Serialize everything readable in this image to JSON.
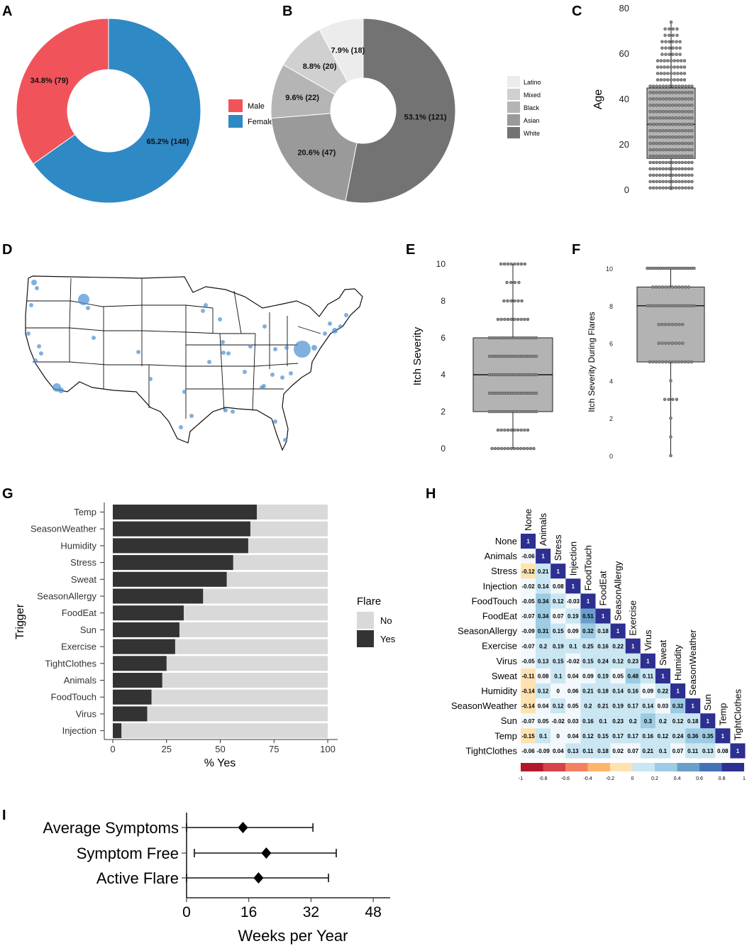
{
  "panel_labels": [
    "A",
    "B",
    "C",
    "D",
    "E",
    "F",
    "G",
    "H",
    "I"
  ],
  "chart_data": [
    {
      "id": "A",
      "type": "pie",
      "donut": true,
      "slices": [
        {
          "label": "Female",
          "value": 65.2,
          "count": 148,
          "text": "65.2% (148)",
          "color": "#2f89c5"
        },
        {
          "label": "Male",
          "value": 34.8,
          "count": 79,
          "text": "34.8% (79)",
          "color": "#f0545a"
        }
      ],
      "legend": [
        {
          "label": "Male",
          "color": "#f0545a"
        },
        {
          "label": "Female",
          "color": "#2f89c5"
        }
      ]
    },
    {
      "id": "B",
      "type": "pie",
      "donut": true,
      "slices": [
        {
          "label": "White",
          "value": 53.1,
          "count": 121,
          "text": "53.1% (121)",
          "color": "#737373"
        },
        {
          "label": "Asian",
          "value": 20.6,
          "count": 47,
          "text": "20.6% (47)",
          "color": "#9a9a9a"
        },
        {
          "label": "Black",
          "value": 9.6,
          "count": 22,
          "text": "9.6% (22)",
          "color": "#b5b5b5"
        },
        {
          "label": "Mixed",
          "value": 8.8,
          "count": 20,
          "text": "8.8% (20)",
          "color": "#d0d0d0"
        },
        {
          "label": "Latino",
          "value": 7.9,
          "count": 18,
          "text": "7.9% (18)",
          "color": "#ececec"
        }
      ],
      "legend": [
        {
          "label": "Latino",
          "color": "#ececec"
        },
        {
          "label": "Mixed",
          "color": "#d0d0d0"
        },
        {
          "label": "Black",
          "color": "#b5b5b5"
        },
        {
          "label": "Asian",
          "color": "#9a9a9a"
        },
        {
          "label": "White",
          "color": "#737373"
        }
      ]
    },
    {
      "id": "C",
      "type": "box",
      "ylabel": "Age",
      "ylim": [
        0,
        80
      ],
      "yticks": [
        "0",
        "20",
        "40",
        "60",
        "80"
      ],
      "box": {
        "min": 0,
        "q1": 14,
        "median": 29,
        "q3": 45,
        "max": 74
      }
    },
    {
      "id": "D",
      "type": "map",
      "region": "Contiguous United States",
      "point_color": "#4a8fcf"
    },
    {
      "id": "E",
      "type": "box",
      "ylabel": "Itch Severity",
      "ylim": [
        0,
        10
      ],
      "yticks": [
        "0",
        "2",
        "4",
        "6",
        "8",
        "10"
      ],
      "box": {
        "min": 0,
        "q1": 2,
        "median": 4,
        "q3": 6,
        "max": 10
      }
    },
    {
      "id": "F",
      "type": "box",
      "ylabel": "Itch Severity During Flares",
      "ylim": [
        0,
        10
      ],
      "yticks": [
        "0",
        "2",
        "4",
        "6",
        "8",
        "10"
      ],
      "box": {
        "min": 0,
        "q1": 5,
        "median": 8,
        "q3": 9,
        "max": 10
      }
    },
    {
      "id": "G",
      "type": "bar",
      "orientation": "horizontal",
      "stacked": true,
      "ylabel": "Trigger",
      "xlabel": "% Yes",
      "xlim": [
        0,
        100
      ],
      "xticks": [
        "0",
        "25",
        "50",
        "75",
        "100"
      ],
      "categories": [
        "Temp",
        "SeasonWeather",
        "Humidity",
        "Stress",
        "Sweat",
        "SeasonAllergy",
        "FoodEat",
        "Sun",
        "Exercise",
        "TightClothes",
        "Animals",
        "FoodTouch",
        "Virus",
        "Injection"
      ],
      "series": [
        {
          "name": "Yes",
          "color": "#333333",
          "values": [
            67,
            64,
            63,
            56,
            53,
            42,
            33,
            31,
            29,
            25,
            23,
            18,
            16,
            4
          ]
        },
        {
          "name": "No",
          "color": "#d9d9d9",
          "values": [
            33,
            36,
            37,
            44,
            47,
            58,
            67,
            69,
            71,
            75,
            77,
            82,
            84,
            96
          ]
        }
      ],
      "legend_title": "Flare",
      "legend": [
        {
          "label": "No",
          "color": "#d9d9d9"
        },
        {
          "label": "Yes",
          "color": "#333333"
        }
      ]
    },
    {
      "id": "H",
      "type": "heatmap",
      "triangle": "lower",
      "labels": [
        "None",
        "Animals",
        "Stress",
        "Injection",
        "FoodTouch",
        "FoodEat",
        "SeasonAllergy",
        "Exercise",
        "Virus",
        "Sweat",
        "Humidity",
        "SeasonWeather",
        "Sun",
        "Temp",
        "TightClothes"
      ],
      "matrix": [
        [
          "1"
        ],
        [
          "-0.06",
          "1"
        ],
        [
          "-0.12",
          "0.21",
          "1"
        ],
        [
          "-0.02",
          "0.14",
          "0.08",
          "1"
        ],
        [
          "-0.05",
          "0.34",
          "0.12",
          "-0.03",
          "1"
        ],
        [
          "-0.07",
          "0.34",
          "0.07",
          "0.19",
          "0.51",
          "1"
        ],
        [
          "-0.09",
          "0.31",
          "0.15",
          "0.09",
          "0.32",
          "0.18",
          "1"
        ],
        [
          "-0.07",
          "0.2",
          "0.19",
          "0.1",
          "0.25",
          "0.16",
          "0.22",
          "1"
        ],
        [
          "-0.05",
          "0.13",
          "0.15",
          "-0.02",
          "0.15",
          "0.24",
          "0.12",
          "0.23",
          "1"
        ],
        [
          "-0.11",
          "0.08",
          "0.1",
          "0.04",
          "0.09",
          "0.19",
          "0.05",
          "0.48",
          "0.11",
          "1"
        ],
        [
          "-0.14",
          "0.12",
          "0",
          "0.06",
          "0.21",
          "0.18",
          "0.14",
          "0.16",
          "0.09",
          "0.22",
          "1"
        ],
        [
          "-0.14",
          "0.04",
          "0.12",
          "0.05",
          "0.2",
          "0.21",
          "0.19",
          "0.17",
          "0.14",
          "0.03",
          "0.32",
          "1"
        ],
        [
          "-0.07",
          "0.05",
          "-0.02",
          "0.03",
          "0.16",
          "0.1",
          "0.23",
          "0.2",
          "0.3",
          "0.2",
          "0.12",
          "0.18",
          "1"
        ],
        [
          "-0.15",
          "0.1",
          "0",
          "0.04",
          "0.12",
          "0.15",
          "0.17",
          "0.17",
          "0.16",
          "0.12",
          "0.24",
          "0.36",
          "0.35",
          "1"
        ],
        [
          "-0.06",
          "-0.09",
          "0.04",
          "0.13",
          "0.11",
          "0.18",
          "0.02",
          "0.07",
          "0.21",
          "0.1",
          "0.07",
          "0.11",
          "0.13",
          "0.08",
          "1"
        ]
      ],
      "scale_ticks": [
        "-1",
        "-0.8",
        "-0.6",
        "-0.4",
        "-0.2",
        "0",
        "0.2",
        "0.4",
        "0.6",
        "0.8",
        "1"
      ],
      "scale_colors": [
        "#b2182b",
        "#d6434a",
        "#f4815f",
        "#fdb56b",
        "#fee3b0",
        "#f2f8fb",
        "#c9e6f2",
        "#9ccbe3",
        "#6a9fcc",
        "#4572b5",
        "#2d2f91"
      ]
    },
    {
      "id": "I",
      "type": "dot-errorbar",
      "xlabel": "Weeks per Year",
      "xlim": [
        0,
        52
      ],
      "xticks": [
        "0",
        "16",
        "32",
        "48"
      ],
      "categories": [
        "Average Symptoms",
        "Symptom Free",
        "Active Flare"
      ],
      "series": [
        {
          "name": "mean",
          "values": [
            14.5,
            20.5,
            18.5
          ]
        },
        {
          "name": "low",
          "values": [
            0,
            2,
            0
          ]
        },
        {
          "name": "high",
          "values": [
            32.5,
            38.5,
            36.5
          ]
        }
      ]
    }
  ]
}
